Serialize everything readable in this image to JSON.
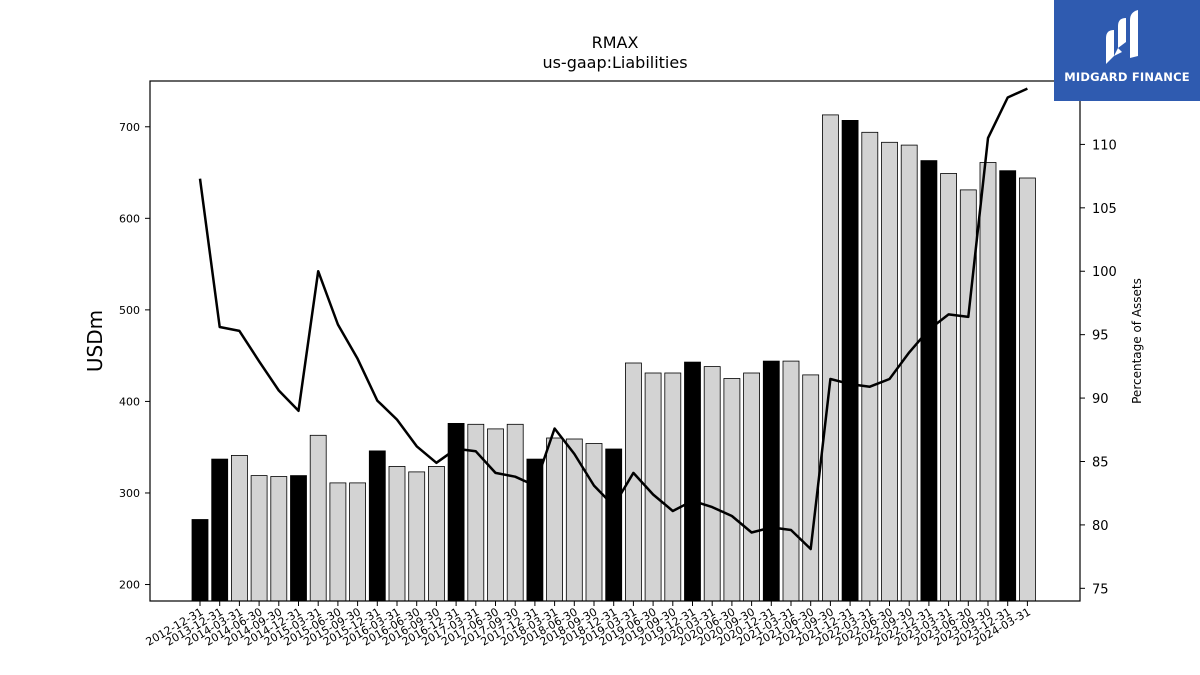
{
  "chart_data": {
    "type": "bar",
    "title": "RMAX",
    "subtitle": "us-gaap:Liabilities",
    "ylabel": "USDm",
    "y2label": "Percentage of Assets",
    "ylim": [
      182,
      750
    ],
    "y2lim": [
      74,
      115
    ],
    "yticks": [
      200,
      300,
      400,
      500,
      600,
      700
    ],
    "y2ticks": [
      75,
      80,
      85,
      90,
      95,
      100,
      105,
      110
    ],
    "categories": [
      "2012-12-31",
      "2013-12-31",
      "2014-03-31",
      "2014-06-30",
      "2014-09-30",
      "2014-12-31",
      "2015-03-31",
      "2015-06-30",
      "2015-09-30",
      "2015-12-31",
      "2016-03-31",
      "2016-06-30",
      "2016-09-30",
      "2016-12-31",
      "2017-03-31",
      "2017-06-30",
      "2017-09-30",
      "2017-12-31",
      "2018-03-31",
      "2018-06-30",
      "2018-09-30",
      "2018-12-31",
      "2019-03-31",
      "2019-06-30",
      "2019-09-30",
      "2019-12-31",
      "2020-03-31",
      "2020-06-30",
      "2020-09-30",
      "2020-12-31",
      "2021-03-31",
      "2021-06-30",
      "2021-09-30",
      "2021-12-31",
      "2022-03-31",
      "2022-06-30",
      "2022-09-30",
      "2022-12-31",
      "2023-03-31",
      "2023-06-30",
      "2023-09-30",
      "2023-12-31",
      "2024-03-31"
    ],
    "series": [
      {
        "kind": "bar",
        "values": [
          271,
          337,
          341,
          319,
          318,
          319,
          363,
          311,
          311,
          346,
          329,
          323,
          329,
          376,
          375,
          370,
          375,
          337,
          360,
          359,
          354,
          348,
          442,
          431,
          431,
          443,
          438,
          425,
          431,
          444,
          444,
          429,
          713,
          707,
          694,
          683,
          680,
          663,
          649,
          631,
          661,
          652,
          644
        ],
        "highlight": [
          true,
          true,
          false,
          false,
          false,
          true,
          false,
          false,
          false,
          true,
          false,
          false,
          false,
          true,
          false,
          false,
          false,
          true,
          false,
          false,
          false,
          true,
          false,
          false,
          false,
          true,
          false,
          false,
          false,
          true,
          false,
          false,
          false,
          true,
          false,
          false,
          false,
          true,
          false,
          false,
          false,
          true,
          false
        ],
        "colors": {
          "highlight": "#000000",
          "normal": "#d3d3d3",
          "edge": "#000000"
        }
      },
      {
        "kind": "line",
        "axis": "right",
        "values": [
          107.3,
          95.6,
          95.3,
          92.9,
          90.6,
          89.0,
          100.0,
          95.8,
          93.1,
          89.8,
          88.3,
          86.2,
          84.9,
          86.0,
          85.8,
          84.1,
          83.8,
          83.1,
          87.6,
          85.6,
          83.1,
          81.5,
          84.1,
          82.4,
          81.1,
          81.9,
          81.4,
          80.7,
          79.4,
          79.8,
          79.6,
          78.1,
          91.5,
          91.1,
          90.9,
          91.5,
          93.6,
          95.4,
          96.6,
          96.4,
          110.5,
          113.7,
          114.4
        ],
        "color": "#000000"
      }
    ]
  },
  "logo": {
    "text": "MIDGARD FINANCE",
    "icon": "midgard-m-icon",
    "bg": "#2f5bb0"
  }
}
